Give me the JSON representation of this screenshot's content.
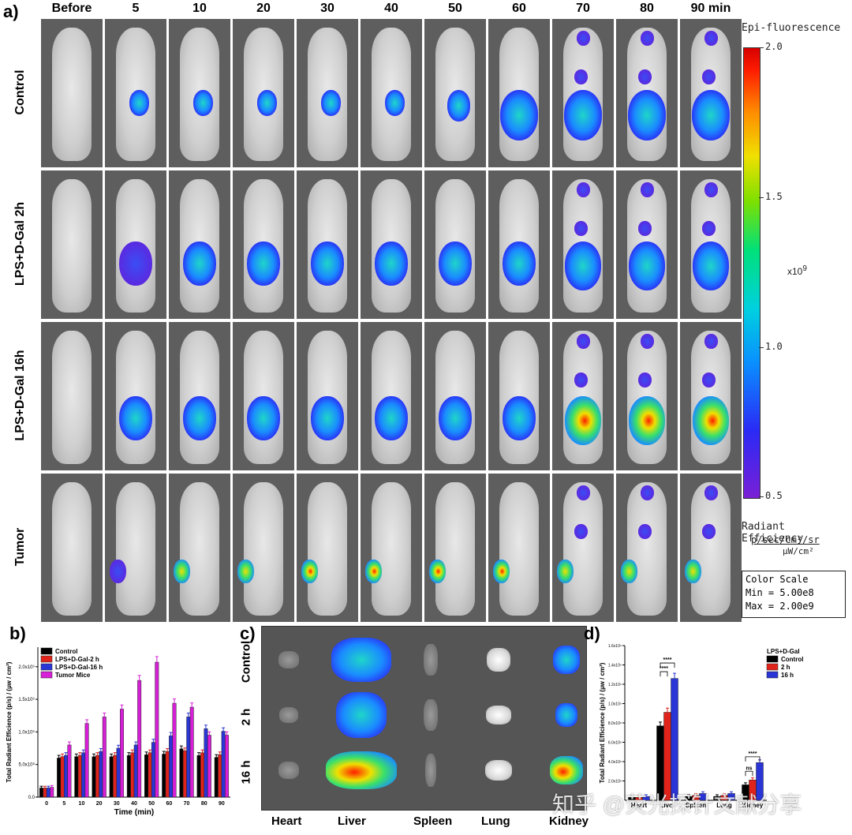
{
  "panel_a": {
    "letter": "a)",
    "columns": [
      "Before",
      "5",
      "10",
      "20",
      "30",
      "40",
      "50",
      "60",
      "70",
      "80",
      "90 min"
    ],
    "rows": [
      "Control",
      "LPS+D-Gal  2h",
      "LPS+D-Gal  16h",
      "Tumor"
    ],
    "colorbar": {
      "title": "Epi-fluorescence",
      "ticks": [
        "2.0",
        "1.5",
        "1.0",
        "0.5"
      ],
      "multiplier": "x10",
      "multiplier_exp": "9",
      "units_title": "Radiant Efficiency",
      "units_num": "p/sec/cm²/sr",
      "units_den": "µW/cm²",
      "scale_title": "Color Scale",
      "scale_min": "Min = 5.00e8",
      "scale_max": "Max = 2.00e9"
    }
  },
  "panel_b": {
    "letter": "b)",
    "chart_data": {
      "type": "bar",
      "xlabel": "Time (min)",
      "ylabel": "Total Radiant Efficience (p/s) / (µw / cm²)",
      "categories": [
        "0",
        "5",
        "10",
        "20",
        "30",
        "40",
        "50",
        "60",
        "70",
        "80",
        "90"
      ],
      "yticks": [
        "0.0",
        "5.0x10⁸",
        "1.0x10⁹",
        "1.5x10⁹",
        "2.0x10⁹"
      ],
      "ylim": [
        0,
        2300000000
      ],
      "series": [
        {
          "name": "Control",
          "color": "#000000",
          "values": [
            140000000,
            600000000,
            620000000,
            620000000,
            620000000,
            640000000,
            650000000,
            660000000,
            740000000,
            640000000,
            610000000
          ]
        },
        {
          "name": "LPS+D-Gal-2 h",
          "color": "#e0241b",
          "values": [
            140000000,
            620000000,
            640000000,
            640000000,
            640000000,
            680000000,
            680000000,
            700000000,
            710000000,
            680000000,
            650000000
          ]
        },
        {
          "name": "LPS+D-Gal-16 h",
          "color": "#2a35d6",
          "values": [
            140000000,
            640000000,
            680000000,
            700000000,
            750000000,
            800000000,
            840000000,
            940000000,
            1230000000,
            1050000000,
            1010000000
          ]
        },
        {
          "name": "Tumor Mice",
          "color": "#d61fd6",
          "values": [
            150000000,
            800000000,
            1130000000,
            1230000000,
            1350000000,
            1790000000,
            2070000000,
            1440000000,
            1380000000,
            950000000,
            950000000
          ]
        }
      ]
    }
  },
  "panel_c": {
    "letter": "c)",
    "rows": [
      "Control",
      "2 h",
      "16 h"
    ],
    "organs": [
      "Heart",
      "Liver",
      "Spleen",
      "Lung",
      "Kidney"
    ]
  },
  "panel_d": {
    "letter": "d)",
    "chart_data": {
      "type": "bar",
      "legend_title": "LPS+D-Gal",
      "ylabel": "Total Radiant Efficience (p/s) / (µw / cm²)",
      "categories": [
        "Heart",
        "Liver",
        "Spleen",
        "Lung",
        "Kidney"
      ],
      "yticks": [
        "2.0x10⁸",
        "4.0x10⁸",
        "6.0x10⁸",
        "8.0x10⁸",
        "1.0x10⁹",
        "1.2x10⁹",
        "1.4x10⁹",
        "1.6x10⁹"
      ],
      "ylim": [
        0,
        1600000000
      ],
      "series": [
        {
          "name": "Control",
          "color": "#000000",
          "values": [
            30000000,
            770000000,
            40000000,
            40000000,
            160000000
          ]
        },
        {
          "name": "2 h",
          "color": "#e0241b",
          "values": [
            30000000,
            910000000,
            50000000,
            50000000,
            210000000
          ]
        },
        {
          "name": "16 h",
          "color": "#2a35d6",
          "values": [
            40000000,
            1260000000,
            70000000,
            70000000,
            390000000
          ]
        }
      ],
      "annotations": [
        "****",
        "****",
        "****",
        "ns"
      ]
    }
  },
  "watermark": "知乎 @荧光探针文献分享"
}
